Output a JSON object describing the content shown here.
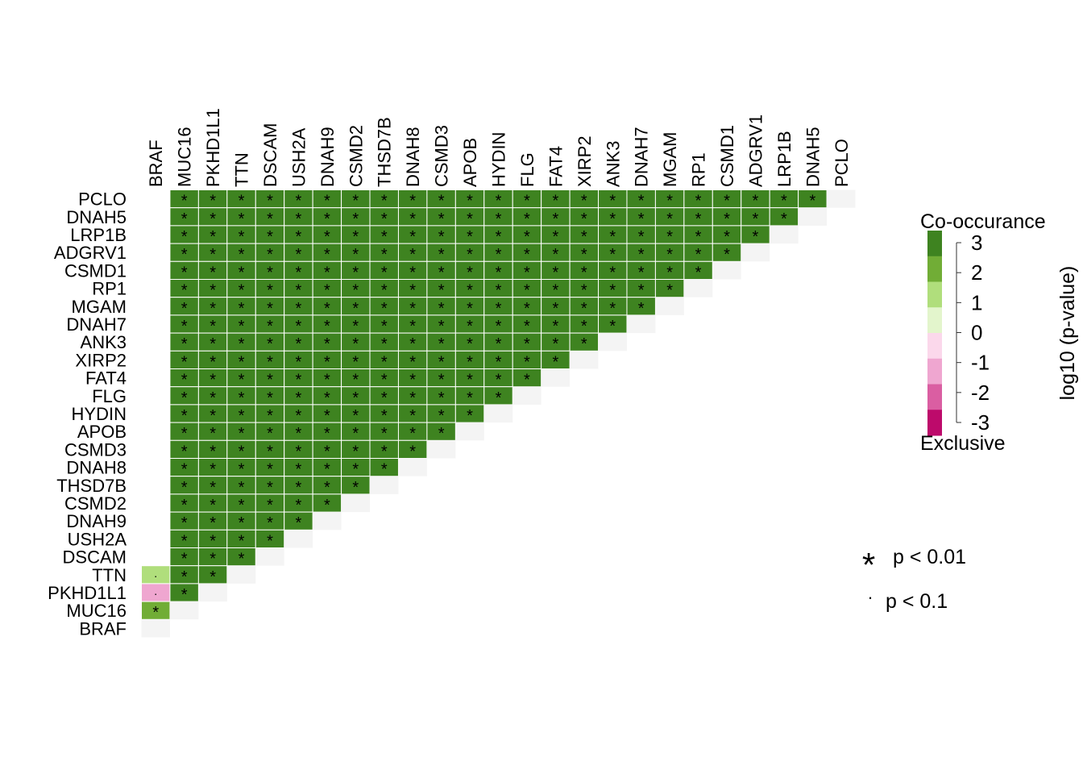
{
  "chart_data": {
    "type": "heatmap",
    "subtype": "somatic-interactions-triangle",
    "genes": [
      "BRAF",
      "MUC16",
      "PKHD1L1",
      "TTN",
      "DSCAM",
      "USH2A",
      "DNAH9",
      "CSMD2",
      "THSD7B",
      "DNAH8",
      "CSMD3",
      "APOB",
      "HYDIN",
      "FLG",
      "FAT4",
      "XIRP2",
      "ANK3",
      "DNAH7",
      "MGAM",
      "RP1",
      "CSMD1",
      "ADGRV1",
      "LRP1B",
      "DNAH5",
      "PCLO"
    ],
    "row_order": [
      "PCLO",
      "DNAH5",
      "LRP1B",
      "ADGRV1",
      "CSMD1",
      "RP1",
      "MGAM",
      "DNAH7",
      "ANK3",
      "XIRP2",
      "FAT4",
      "FLG",
      "HYDIN",
      "APOB",
      "CSMD3",
      "DNAH8",
      "THSD7B",
      "CSMD2",
      "DNAH9",
      "USH2A",
      "DSCAM",
      "TTN",
      "PKHD1L1",
      "MUC16",
      "BRAF"
    ],
    "default_pair": {
      "log10_p": 3,
      "sig": "*"
    },
    "braf_pairs": [
      {
        "gene": "MUC16",
        "log10_p": 1.6,
        "sig": "*"
      },
      {
        "gene": "PKHD1L1",
        "log10_p": -1.3,
        "sig": "."
      },
      {
        "gene": "TTN",
        "log10_p": 1.2,
        "sig": "."
      },
      {
        "gene": "DSCAM",
        "log10_p": 0,
        "sig": ""
      },
      {
        "gene": "USH2A",
        "log10_p": 0,
        "sig": ""
      },
      {
        "gene": "DNAH9",
        "log10_p": 0,
        "sig": ""
      },
      {
        "gene": "CSMD2",
        "log10_p": 0,
        "sig": ""
      },
      {
        "gene": "THSD7B",
        "log10_p": 0,
        "sig": ""
      },
      {
        "gene": "DNAH8",
        "log10_p": 0,
        "sig": ""
      },
      {
        "gene": "CSMD3",
        "log10_p": 0,
        "sig": ""
      },
      {
        "gene": "APOB",
        "log10_p": 0,
        "sig": ""
      },
      {
        "gene": "HYDIN",
        "log10_p": 0,
        "sig": ""
      },
      {
        "gene": "FLG",
        "log10_p": 0,
        "sig": ""
      },
      {
        "gene": "FAT4",
        "log10_p": 0,
        "sig": ""
      },
      {
        "gene": "XIRP2",
        "log10_p": 0,
        "sig": ""
      },
      {
        "gene": "ANK3",
        "log10_p": 0,
        "sig": ""
      },
      {
        "gene": "DNAH7",
        "log10_p": 0,
        "sig": ""
      },
      {
        "gene": "MGAM",
        "log10_p": 0,
        "sig": ""
      },
      {
        "gene": "RP1",
        "log10_p": 0,
        "sig": ""
      },
      {
        "gene": "CSMD1",
        "log10_p": 0,
        "sig": ""
      },
      {
        "gene": "ADGRV1",
        "log10_p": 0,
        "sig": ""
      },
      {
        "gene": "LRP1B",
        "log10_p": 0,
        "sig": ""
      },
      {
        "gene": "DNAH5",
        "log10_p": 0,
        "sig": ""
      },
      {
        "gene": "PCLO",
        "log10_p": 0,
        "sig": ""
      }
    ],
    "diagonal_color": "#f4f4f4",
    "palette": {
      "bins": [
        {
          "range": [
            2,
            3
          ],
          "color": "#3e8320"
        },
        {
          "range": [
            1.5,
            2
          ],
          "color": "#71ad36"
        },
        {
          "range": [
            1,
            1.5
          ],
          "color": "#b0de7c"
        },
        {
          "range": [
            0,
            1
          ],
          "color": "#e3f5cc"
        },
        {
          "range": [
            -1,
            0
          ],
          "color": "#fbd8eb"
        },
        {
          "range": [
            -1.5,
            -1
          ],
          "color": "#efa6d0"
        },
        {
          "range": [
            -2,
            -1.5
          ],
          "color": "#da5ea2"
        },
        {
          "range": [
            -3,
            -2
          ],
          "color": "#bd0a6b"
        }
      ]
    },
    "legend": {
      "top_label": "Co-occurance",
      "bottom_label": "Exclusive",
      "ticks": [
        "3",
        "2",
        "1",
        "0",
        "-1",
        "-2",
        "-3"
      ],
      "axis_title": "log10 (p-value)",
      "sig_star_label": "p < 0.01",
      "sig_dot_label": "p < 0.1"
    }
  }
}
